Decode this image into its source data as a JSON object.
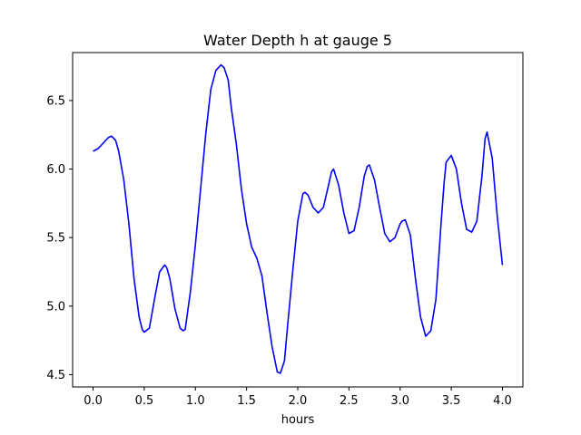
{
  "chart_data": {
    "type": "line",
    "title": "Water Depth h at gauge 5",
    "xlabel": "hours",
    "ylabel": "",
    "xlim": [
      -0.2,
      4.2
    ],
    "ylim": [
      4.41,
      6.85
    ],
    "xticks": [
      0.0,
      0.5,
      1.0,
      1.5,
      2.0,
      2.5,
      3.0,
      3.5,
      4.0
    ],
    "xtick_labels": [
      "0.0",
      "0.5",
      "1.0",
      "1.5",
      "2.0",
      "2.5",
      "3.0",
      "3.5",
      "4.0"
    ],
    "yticks": [
      4.5,
      5.0,
      5.5,
      6.0,
      6.5
    ],
    "ytick_labels": [
      "4.5",
      "5.0",
      "5.5",
      "6.0",
      "6.5"
    ],
    "grid": false,
    "line_color": "#0000ff",
    "series": [
      {
        "x": [
          0.0,
          0.05,
          0.1,
          0.15,
          0.18,
          0.22,
          0.25,
          0.3,
          0.35,
          0.4,
          0.45,
          0.48,
          0.5,
          0.55,
          0.6,
          0.65,
          0.7,
          0.72,
          0.75,
          0.8,
          0.85,
          0.88,
          0.9,
          0.95,
          1.0,
          1.05,
          1.1,
          1.15,
          1.2,
          1.25,
          1.28,
          1.32,
          1.35,
          1.4,
          1.45,
          1.5,
          1.55,
          1.6,
          1.65,
          1.7,
          1.75,
          1.8,
          1.83,
          1.87,
          1.9,
          1.95,
          2.0,
          2.05,
          2.07,
          2.1,
          2.15,
          2.2,
          2.25,
          2.3,
          2.33,
          2.35,
          2.4,
          2.45,
          2.5,
          2.55,
          2.6,
          2.65,
          2.68,
          2.7,
          2.75,
          2.8,
          2.85,
          2.9,
          2.95,
          3.0,
          3.02,
          3.05,
          3.1,
          3.15,
          3.2,
          3.25,
          3.3,
          3.35,
          3.4,
          3.43,
          3.45,
          3.5,
          3.55,
          3.6,
          3.65,
          3.7,
          3.75,
          3.8,
          3.83,
          3.85,
          3.9,
          3.95,
          4.0
        ],
        "y": [
          6.13,
          6.15,
          6.19,
          6.23,
          6.24,
          6.21,
          6.13,
          5.92,
          5.6,
          5.2,
          4.92,
          4.83,
          4.81,
          4.84,
          5.05,
          5.25,
          5.3,
          5.28,
          5.2,
          4.98,
          4.84,
          4.82,
          4.83,
          5.1,
          5.45,
          5.85,
          6.25,
          6.58,
          6.72,
          6.76,
          6.74,
          6.65,
          6.45,
          6.18,
          5.85,
          5.6,
          5.43,
          5.35,
          5.22,
          4.95,
          4.7,
          4.52,
          4.51,
          4.6,
          4.85,
          5.25,
          5.62,
          5.82,
          5.83,
          5.81,
          5.72,
          5.68,
          5.72,
          5.88,
          5.98,
          6.0,
          5.88,
          5.68,
          5.53,
          5.55,
          5.72,
          5.95,
          6.02,
          6.03,
          5.92,
          5.72,
          5.53,
          5.47,
          5.5,
          5.6,
          5.62,
          5.63,
          5.52,
          5.2,
          4.92,
          4.78,
          4.82,
          5.05,
          5.6,
          5.9,
          6.05,
          6.1,
          6.0,
          5.75,
          5.56,
          5.54,
          5.62,
          5.95,
          6.22,
          6.27,
          6.08,
          5.65,
          5.3
        ]
      }
    ]
  }
}
